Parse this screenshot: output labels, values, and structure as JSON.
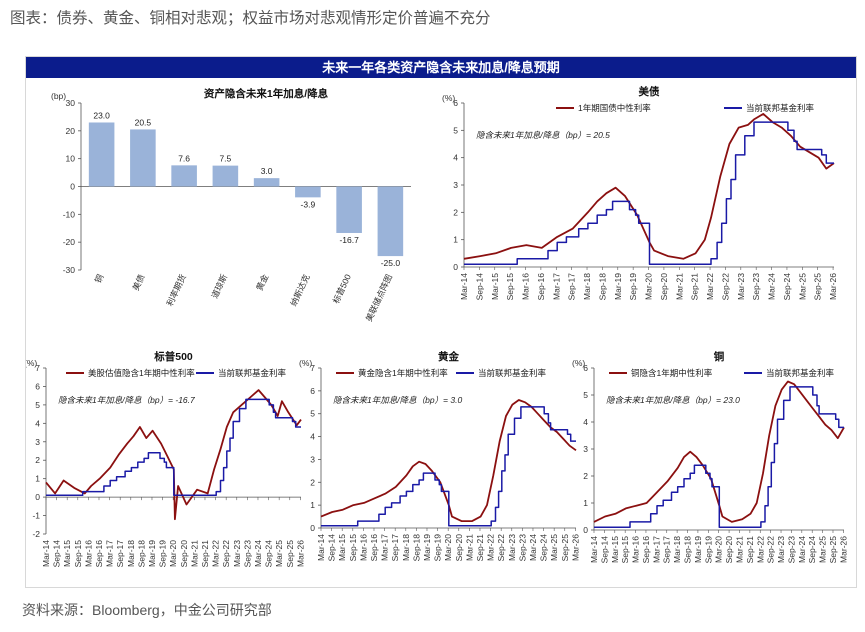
{
  "page_title": "图表：债券、黄金、铜相对悲观；权益市场对悲观情形定价普遍不充分",
  "banner": "未来一年各类资产隐含未来加息/降息预期",
  "source": "资料来源：Bloomberg，中金公司研究部",
  "colors": {
    "banner": "#0b1c8c",
    "bar": "#9ab3d9",
    "implied": "#8b1010",
    "fed": "#1a1aa6"
  },
  "x_ticks": [
    "Mar-14",
    "Sep-14",
    "Mar-15",
    "Sep-15",
    "Mar-16",
    "Sep-16",
    "Mar-17",
    "Sep-17",
    "Mar-18",
    "Sep-18",
    "Mar-19",
    "Sep-19",
    "Mar-20",
    "Sep-20",
    "Mar-21",
    "Sep-21",
    "Mar-22",
    "Sep-22",
    "Mar-23",
    "Sep-23",
    "Mar-24",
    "Sep-24",
    "Mar-25",
    "Sep-25",
    "Mar-26"
  ],
  "chart_data": [
    {
      "type": "bar",
      "title": "资产隐含未来1年加息/降息",
      "unit": "(bp)",
      "ylim": [
        -30,
        30
      ],
      "yticks": [
        30,
        20,
        10,
        0,
        -10,
        -20,
        -30
      ],
      "categories": [
        "铜",
        "美债",
        "利率期货",
        "道琼斯",
        "黄金",
        "纳斯达克",
        "标普500",
        "美联储点阵图"
      ],
      "values": [
        23.0,
        20.5,
        7.6,
        7.5,
        3.0,
        -3.9,
        -16.7,
        -25.0
      ],
      "value_labels": [
        "23.0",
        "20.5",
        "7.6",
        "7.5",
        "3.0",
        "-3.9",
        "-16.7",
        "-25.0"
      ]
    },
    {
      "type": "line",
      "title": "美债",
      "unit": "(%)",
      "ylim": [
        0,
        6
      ],
      "yticks": [
        6,
        5,
        4,
        3,
        2,
        1,
        0
      ],
      "annotation": "隐含未来1年加息/降息（bp）= 20.5",
      "series": [
        {
          "name": "1年期国债中性利率",
          "x": [
            2014.17,
            2014.7,
            2015.2,
            2015.7,
            2016.2,
            2016.7,
            2017.2,
            2017.7,
            2018.2,
            2018.5,
            2018.8,
            2019.1,
            2019.4,
            2019.8,
            2020.2,
            2020.35,
            2020.8,
            2021.3,
            2021.7,
            2022.0,
            2022.2,
            2022.5,
            2022.8,
            2023.1,
            2023.4,
            2023.6,
            2023.9,
            2024.2,
            2024.5,
            2024.8,
            2025.1,
            2025.4,
            2025.7,
            2025.95,
            2026.2
          ],
          "y": [
            0.3,
            0.4,
            0.5,
            0.7,
            0.8,
            0.7,
            1.1,
            1.4,
            2.0,
            2.4,
            2.7,
            2.9,
            2.6,
            1.9,
            0.9,
            0.6,
            0.4,
            0.3,
            0.5,
            1.0,
            1.8,
            3.3,
            4.5,
            5.1,
            5.2,
            5.4,
            5.6,
            5.3,
            5.1,
            4.8,
            4.4,
            4.2,
            4.0,
            3.6,
            3.8
          ]
        },
        {
          "name": "当前联邦基金利率",
          "x": [
            2014.17,
            2015.9,
            2016.9,
            2017.2,
            2017.5,
            2017.9,
            2018.2,
            2018.5,
            2018.8,
            2019.0,
            2019.55,
            2019.75,
            2019.85,
            2020.2,
            2022.2,
            2022.4,
            2022.55,
            2022.7,
            2022.85,
            2023.0,
            2023.3,
            2023.6,
            2024.7,
            2024.9,
            2025.0,
            2025.8,
            2025.95,
            2026.2
          ],
          "y": [
            0.1,
            0.3,
            0.6,
            0.9,
            1.1,
            1.4,
            1.6,
            1.9,
            2.1,
            2.4,
            2.1,
            1.9,
            1.6,
            0.1,
            0.3,
            0.9,
            1.6,
            2.5,
            3.2,
            4.1,
            4.8,
            5.3,
            5.0,
            4.6,
            4.3,
            4.1,
            3.8,
            3.8
          ]
        }
      ]
    },
    {
      "type": "line",
      "title": "标普500",
      "unit": "(%)",
      "ylim": [
        -2,
        7
      ],
      "yticks": [
        7,
        6,
        5,
        4,
        3,
        2,
        1,
        0,
        -1,
        -2
      ],
      "annotation": "隐含未来1年加息/降息（bp）= -16.7",
      "series": [
        {
          "name": "美股估值隐含1年期中性利率",
          "x": [
            2014.17,
            2014.6,
            2015.0,
            2015.5,
            2016.0,
            2016.3,
            2016.7,
            2017.2,
            2017.6,
            2018.0,
            2018.3,
            2018.6,
            2018.9,
            2019.2,
            2019.6,
            2019.9,
            2020.2,
            2020.25,
            2020.4,
            2020.8,
            2021.3,
            2021.8,
            2022.1,
            2022.4,
            2022.7,
            2023.0,
            2023.4,
            2023.8,
            2024.2,
            2024.5,
            2024.8,
            2025.1,
            2025.3,
            2025.6,
            2026.0,
            2026.2
          ],
          "y": [
            0.8,
            0.2,
            0.9,
            0.5,
            0.2,
            0.6,
            1.0,
            1.6,
            2.3,
            2.9,
            3.3,
            3.8,
            3.2,
            3.6,
            2.9,
            2.2,
            1.5,
            -1.2,
            0.6,
            -0.4,
            0.4,
            0.2,
            1.5,
            2.6,
            3.8,
            4.6,
            5.0,
            5.4,
            5.8,
            5.4,
            5.0,
            4.4,
            5.2,
            4.6,
            3.9,
            4.2
          ]
        },
        {
          "name": "当前联邦基金利率",
          "x": [
            2014.17,
            2015.9,
            2016.9,
            2017.2,
            2017.5,
            2017.9,
            2018.2,
            2018.5,
            2018.8,
            2019.0,
            2019.55,
            2019.75,
            2019.85,
            2020.2,
            2022.2,
            2022.4,
            2022.55,
            2022.7,
            2022.85,
            2023.0,
            2023.3,
            2023.6,
            2024.7,
            2024.9,
            2025.0,
            2025.8,
            2025.95,
            2026.2
          ],
          "y": [
            0.1,
            0.3,
            0.6,
            0.9,
            1.1,
            1.4,
            1.6,
            1.9,
            2.1,
            2.4,
            2.1,
            1.9,
            1.6,
            0.1,
            0.3,
            0.9,
            1.6,
            2.5,
            3.2,
            4.1,
            4.8,
            5.3,
            5.0,
            4.6,
            4.3,
            4.1,
            3.8,
            3.8
          ]
        }
      ]
    },
    {
      "type": "line",
      "title": "黄金",
      "unit": "(%)",
      "ylim": [
        0,
        7
      ],
      "yticks": [
        7,
        6,
        5,
        4,
        3,
        2,
        1,
        0
      ],
      "annotation": "隐含未来1年加息/降息（bp）= 3.0",
      "series": [
        {
          "name": "黄金隐含1年期中性利率",
          "x": [
            2014.17,
            2014.7,
            2015.2,
            2015.7,
            2016.2,
            2016.7,
            2017.2,
            2017.7,
            2018.2,
            2018.5,
            2018.8,
            2019.1,
            2019.4,
            2019.8,
            2020.2,
            2020.35,
            2020.8,
            2021.3,
            2021.7,
            2022.0,
            2022.3,
            2022.6,
            2022.9,
            2023.2,
            2023.5,
            2023.8,
            2024.1,
            2024.4,
            2024.7,
            2025.0,
            2025.3,
            2025.6,
            2025.9,
            2026.2
          ],
          "y": [
            0.5,
            0.7,
            0.8,
            1.0,
            1.1,
            1.3,
            1.5,
            1.8,
            2.3,
            2.7,
            2.9,
            2.8,
            2.5,
            2.0,
            1.0,
            0.5,
            0.3,
            0.3,
            0.5,
            1.0,
            2.3,
            3.8,
            4.9,
            5.4,
            5.6,
            5.5,
            5.3,
            5.0,
            4.7,
            4.4,
            4.2,
            3.9,
            3.6,
            3.4
          ]
        },
        {
          "name": "当前联邦基金利率",
          "x": [
            2014.17,
            2015.9,
            2016.9,
            2017.2,
            2017.5,
            2017.9,
            2018.2,
            2018.5,
            2018.8,
            2019.0,
            2019.55,
            2019.75,
            2019.85,
            2020.2,
            2022.2,
            2022.4,
            2022.55,
            2022.7,
            2022.85,
            2023.0,
            2023.3,
            2023.6,
            2024.7,
            2024.9,
            2025.0,
            2025.8,
            2025.95,
            2026.2
          ],
          "y": [
            0.1,
            0.3,
            0.6,
            0.9,
            1.1,
            1.4,
            1.6,
            1.9,
            2.1,
            2.4,
            2.1,
            1.9,
            1.6,
            0.1,
            0.3,
            0.9,
            1.6,
            2.5,
            3.2,
            4.1,
            4.8,
            5.3,
            5.0,
            4.6,
            4.3,
            4.1,
            3.8,
            3.8
          ]
        }
      ]
    },
    {
      "type": "line",
      "title": "铜",
      "unit": "(%)",
      "ylim": [
        0,
        6
      ],
      "yticks": [
        6,
        5,
        4,
        3,
        2,
        1,
        0
      ],
      "annotation": "隐含未来1年加息/降息（bp）= 23.0",
      "series": [
        {
          "name": "铜隐含1年期中性利率",
          "x": [
            2014.17,
            2014.7,
            2015.2,
            2015.7,
            2016.2,
            2016.7,
            2017.2,
            2017.7,
            2018.2,
            2018.5,
            2018.8,
            2019.1,
            2019.4,
            2019.8,
            2020.2,
            2020.35,
            2020.8,
            2021.3,
            2021.7,
            2022.0,
            2022.3,
            2022.6,
            2022.9,
            2023.2,
            2023.5,
            2023.8,
            2024.1,
            2024.4,
            2024.7,
            2025.0,
            2025.3,
            2025.6,
            2025.9,
            2026.2
          ],
          "y": [
            0.3,
            0.5,
            0.6,
            0.8,
            0.9,
            1.0,
            1.4,
            1.8,
            2.3,
            2.7,
            2.9,
            2.7,
            2.4,
            1.9,
            0.9,
            0.5,
            0.3,
            0.4,
            0.6,
            1.0,
            2.1,
            3.5,
            4.6,
            5.2,
            5.5,
            5.4,
            5.1,
            4.8,
            4.5,
            4.2,
            3.9,
            3.7,
            3.4,
            3.8
          ]
        },
        {
          "name": "当前联邦基金利率",
          "x": [
            2014.17,
            2015.9,
            2016.9,
            2017.2,
            2017.5,
            2017.9,
            2018.2,
            2018.5,
            2018.8,
            2019.0,
            2019.55,
            2019.75,
            2019.85,
            2020.2,
            2022.2,
            2022.4,
            2022.55,
            2022.7,
            2022.85,
            2023.0,
            2023.3,
            2023.6,
            2024.7,
            2024.9,
            2025.0,
            2025.8,
            2025.95,
            2026.2
          ],
          "y": [
            0.1,
            0.3,
            0.6,
            0.9,
            1.1,
            1.4,
            1.6,
            1.9,
            2.1,
            2.4,
            2.1,
            1.9,
            1.6,
            0.1,
            0.3,
            0.9,
            1.6,
            2.5,
            3.2,
            4.1,
            4.8,
            5.3,
            5.0,
            4.6,
            4.3,
            4.1,
            3.8,
            3.8
          ]
        }
      ]
    }
  ]
}
